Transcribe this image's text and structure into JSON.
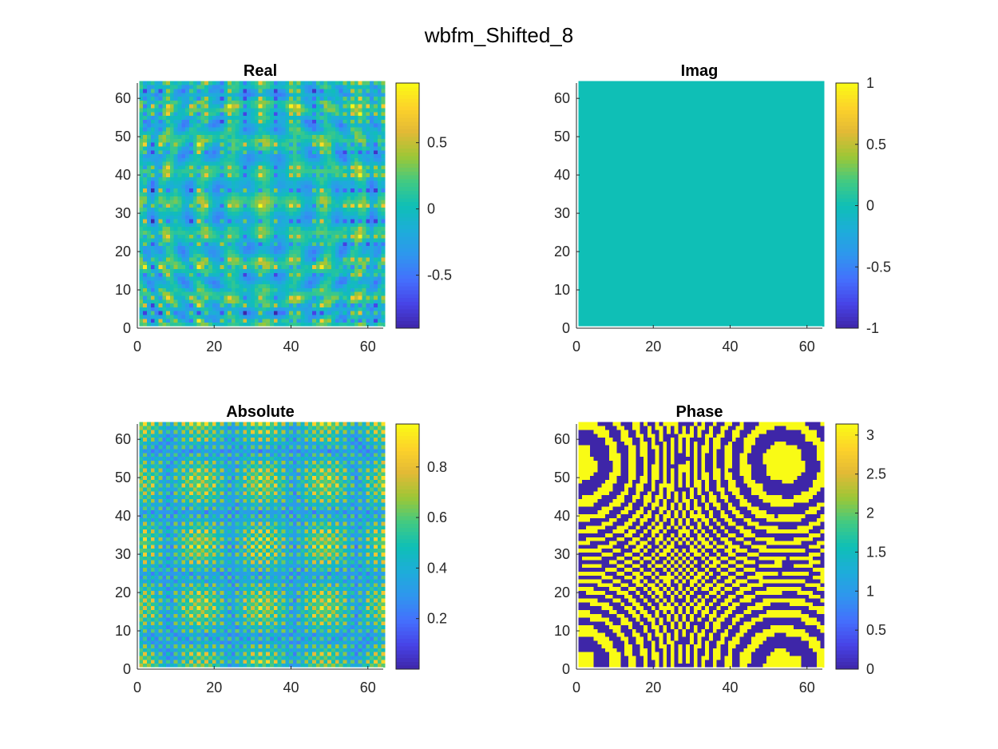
{
  "figure": {
    "title": "wbfm_Shifted_8"
  },
  "colormap": [
    "#3e26a8",
    "#4743e7",
    "#4470fd",
    "#2f96ee",
    "#1dadd9",
    "#0fbfb6",
    "#42ca82",
    "#9cc736",
    "#e2b936",
    "#fdd22a",
    "#f9fb15"
  ],
  "chart_data": [
    {
      "type": "heatmap",
      "name": "real",
      "title": "Real",
      "xlabel": "",
      "ylabel": "",
      "xlim": [
        0,
        64
      ],
      "ylim": [
        0,
        64
      ],
      "x_ticks": [
        "0",
        "20",
        "40",
        "60"
      ],
      "y_ticks": [
        "0",
        "10",
        "20",
        "30",
        "40",
        "50",
        "60"
      ],
      "clim": [
        -0.9,
        0.95
      ],
      "colorbar_ticks": [
        "-0.5",
        "0",
        "0.5"
      ],
      "grid": "64x64",
      "pattern": "oscillating"
    },
    {
      "type": "heatmap",
      "name": "imag",
      "title": "Imag",
      "xlabel": "",
      "ylabel": "",
      "xlim": [
        0,
        64
      ],
      "ylim": [
        0,
        64
      ],
      "x_ticks": [
        "0",
        "20",
        "40",
        "60"
      ],
      "y_ticks": [
        "0",
        "10",
        "20",
        "30",
        "40",
        "50",
        "60"
      ],
      "clim": [
        -1,
        1
      ],
      "colorbar_ticks": [
        "-1",
        "-0.5",
        "0",
        "0.5",
        "1"
      ],
      "grid": "64x64",
      "pattern": "constant",
      "constant_value": 0
    },
    {
      "type": "heatmap",
      "name": "absolute",
      "title": "Absolute",
      "xlabel": "",
      "ylabel": "",
      "xlim": [
        0,
        64
      ],
      "ylim": [
        0,
        64
      ],
      "x_ticks": [
        "0",
        "20",
        "40",
        "60"
      ],
      "y_ticks": [
        "0",
        "10",
        "20",
        "30",
        "40",
        "50",
        "60"
      ],
      "clim": [
        0,
        0.97
      ],
      "colorbar_ticks": [
        "0.2",
        "0.4",
        "0.6",
        "0.8"
      ],
      "grid": "64x64",
      "pattern": "magnitude"
    },
    {
      "type": "heatmap",
      "name": "phase",
      "title": "Phase",
      "xlabel": "",
      "ylabel": "",
      "xlim": [
        0,
        64
      ],
      "ylim": [
        0,
        64
      ],
      "x_ticks": [
        "0",
        "20",
        "40",
        "60"
      ],
      "y_ticks": [
        "0",
        "10",
        "20",
        "30",
        "40",
        "50",
        "60"
      ],
      "clim": [
        0,
        3.14159
      ],
      "colorbar_ticks": [
        "0",
        "0.5",
        "1",
        "1.5",
        "2",
        "2.5",
        "3"
      ],
      "grid": "64x64",
      "pattern": "binary",
      "values_present": [
        0,
        3.14159
      ]
    }
  ]
}
